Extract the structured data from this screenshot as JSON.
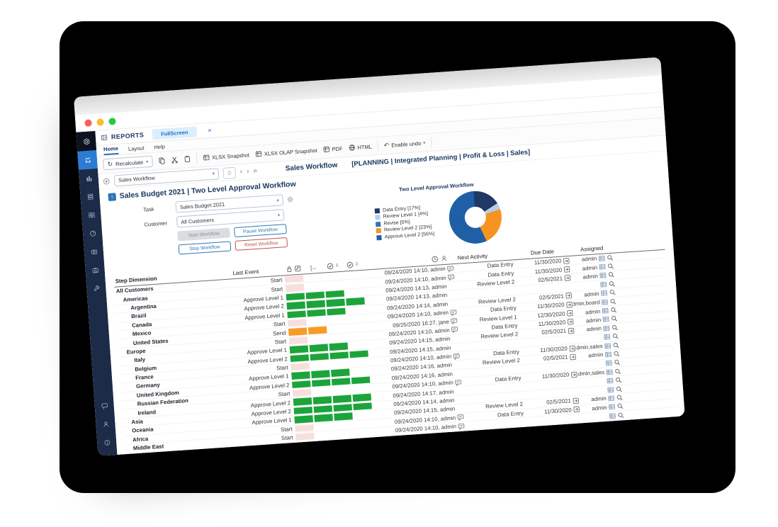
{
  "colors": {
    "accent_blue": "#2e75b6",
    "danger_red": "#c0504d",
    "sidebar_navy": "#1c2b47",
    "sidebar_active_blue": "#2b7cd3",
    "title_navy": "#17365d"
  },
  "sidebar": {
    "top": [
      {
        "name": "board-logo",
        "icon": "hexlogo",
        "active": false,
        "logo": true
      },
      {
        "name": "presentations",
        "icon": "trend",
        "active": true,
        "logo": false
      },
      {
        "name": "reports",
        "icon": "bars",
        "active": false,
        "logo": false
      },
      {
        "name": "database",
        "icon": "db",
        "active": false,
        "logo": false
      },
      {
        "name": "data-view",
        "icon": "cells",
        "active": false,
        "logo": false
      },
      {
        "name": "scheduler",
        "icon": "gauge",
        "active": false,
        "logo": false
      },
      {
        "name": "capture",
        "icon": "camera",
        "active": false,
        "logo": false
      },
      {
        "name": "capsules-home",
        "icon": "homebox",
        "active": false,
        "logo": false
      },
      {
        "name": "system-tools",
        "icon": "wrench",
        "active": false,
        "logo": false
      }
    ],
    "bottom": [
      {
        "name": "comments",
        "icon": "chat"
      },
      {
        "name": "user-account",
        "icon": "person"
      },
      {
        "name": "about-info",
        "icon": "info"
      }
    ]
  },
  "tabbar": {
    "section_label": "REPORTS",
    "tab_label": "FullScreen"
  },
  "menu": {
    "items": [
      "Home",
      "Layout",
      "Help"
    ]
  },
  "toolbar": {
    "recalculate_label": "Recalculate",
    "xlsx_snapshot_label": "XLSX Snapshot",
    "xlsx_olap_label": "XLSX OLAP Snapshot",
    "pdf_label": "PDF",
    "html_label": "HTML",
    "enable_undo_label": "Enable undo"
  },
  "screenbar": {
    "screen_selector_value": "Sales Workflow",
    "title": "Sales Workflow",
    "path": "[PLANNING | Integrated Planning | Profit & Loss | Sales]"
  },
  "workflow_panel": {
    "title": "Sales Budget 2021 | Two Level Approval Workflow",
    "task_label": "Task",
    "task_value": "Sales Budget 2021",
    "customer_label": "Customer",
    "customer_value": "All Customers",
    "buttons": [
      {
        "label": "Start Workflow",
        "variant": "disabled"
      },
      {
        "label": "Pause Workflow",
        "variant": "blue"
      },
      {
        "label": "Stop Workflow",
        "variant": "blue"
      },
      {
        "label": "Reset Workflow",
        "variant": "red"
      }
    ]
  },
  "chart_data": {
    "type": "pie",
    "donut": true,
    "title": "Two Level Approval Workflow",
    "labels": [
      "Data Entry",
      "Review Level 1",
      "Revise",
      "Review Level 2",
      "Approve Level 2"
    ],
    "values": [
      17,
      4,
      0,
      23,
      56
    ],
    "colors": [
      "#1f3864",
      "#b8cce4",
      "#2e75b6",
      "#f79421",
      "#1f5fa6"
    ],
    "legend_labels": [
      "Data Entry [17%]",
      "Review Level 1 [4%]",
      "Revise [0%]",
      "Review Level 2 [23%]",
      "Approve Level 2 [56%]"
    ],
    "legend_position": "left"
  },
  "table": {
    "headers": {
      "step": "Step Dimension",
      "last_event": "Last Event",
      "check1_label": "1.",
      "check2_label": "2.",
      "next_activity": "Next Activity",
      "due_date": "Due Date",
      "assigned": "Assigned"
    },
    "cell_colors": {
      "green": "#1ca43b",
      "pink": "#f6dfdd",
      "orange": "#f79b27"
    },
    "rows": [
      {
        "name": "All Customers",
        "level": 0,
        "event": "Start",
        "state": "start",
        "time": "09/24/2020 14:10, admin",
        "comment": true,
        "next": "Data Entry",
        "due": "11/30/2020",
        "assigned": "admin"
      },
      {
        "name": "Americas",
        "level": 1,
        "event": "Start",
        "state": "start",
        "time": "09/24/2020 14:10, admin",
        "comment": true,
        "next": "Data Entry",
        "due": "11/30/2020",
        "assigned": "admin"
      },
      {
        "name": "Argentina",
        "level": 2,
        "event": "Approve Level 1",
        "state": "approve1",
        "time": "09/24/2020 14:13, admin",
        "comment": false,
        "next": "Review Level 2",
        "due": "02/5/2021",
        "assigned": "admin"
      },
      {
        "name": "Brazil",
        "level": 2,
        "event": "Approve Level 2",
        "state": "approve2",
        "time": "09/24/2020 14:13, admin",
        "comment": false,
        "next": "",
        "due": "",
        "assigned": ""
      },
      {
        "name": "Canada",
        "level": 2,
        "event": "Approve Level 1",
        "state": "approve1",
        "time": "09/24/2020 14:14, admin",
        "comment": false,
        "next": "Review Level 2",
        "due": "02/5/2021",
        "assigned": "admin"
      },
      {
        "name": "Mexico",
        "level": 2,
        "event": "Start",
        "state": "start",
        "time": "09/24/2020 14:10, admin",
        "comment": true,
        "next": "Data Entry",
        "due": "11/30/2020",
        "assigned": "admin,board"
      },
      {
        "name": "United States",
        "level": 2,
        "event": "Send",
        "state": "send",
        "time": "09/25/2020 16:27, jane",
        "comment": true,
        "next": "Review Level 1",
        "due": "12/30/2020",
        "assigned": "admin"
      },
      {
        "name": "Europe",
        "level": 1,
        "event": "Start",
        "state": "start",
        "time": "09/24/2020 14:10, admin",
        "comment": true,
        "next": "Data Entry",
        "due": "11/30/2020",
        "assigned": "admin"
      },
      {
        "name": "Italy",
        "level": 2,
        "event": "Approve Level 1",
        "state": "approve1",
        "time": "09/24/2020 14:15, admin",
        "comment": false,
        "next": "Review Level 2",
        "due": "02/5/2021",
        "assigned": "admin"
      },
      {
        "name": "Belgium",
        "level": 2,
        "event": "Approve Level 2",
        "state": "approve2",
        "time": "09/24/2020 14:15, admin",
        "comment": false,
        "next": "",
        "due": "",
        "assigned": ""
      },
      {
        "name": "France",
        "level": 2,
        "event": "Start",
        "state": "start",
        "time": "09/24/2020 14:10, admin",
        "comment": true,
        "next": "Data Entry",
        "due": "11/30/2020",
        "assigned": "admin,sales"
      },
      {
        "name": "Germany",
        "level": 2,
        "event": "Approve Level 1",
        "state": "approve1",
        "time": "09/24/2020 14:16, admin",
        "comment": false,
        "next": "Review Level 2",
        "due": "02/5/2021",
        "assigned": "admin"
      },
      {
        "name": "United Kingdom",
        "level": 2,
        "event": "Approve Level 2",
        "state": "approve2",
        "time": "09/24/2020 14:16, admin",
        "comment": false,
        "next": "",
        "due": "",
        "assigned": ""
      },
      {
        "name": "Russian Federation",
        "level": 2,
        "event": "Start",
        "state": "start",
        "time": "09/24/2020 14:10, admin",
        "comment": true,
        "next": "Data Entry",
        "due": "11/30/2020",
        "assigned": "admin,sales"
      },
      {
        "name": "Ireland",
        "level": 2,
        "event": "Approve Level 2",
        "state": "approve2",
        "time": "09/24/2020 14:17, admin",
        "comment": false,
        "next": "",
        "due": "",
        "assigned": ""
      },
      {
        "name": "Asia",
        "level": 1,
        "event": "Approve Level 2",
        "state": "approve2",
        "time": "09/24/2020 14:14, admin",
        "comment": false,
        "next": "",
        "due": "",
        "assigned": ""
      },
      {
        "name": "Oceania",
        "level": 1,
        "event": "Approve Level 1",
        "state": "approve1",
        "time": "09/24/2020 14:15, admin",
        "comment": false,
        "next": "Review Level 2",
        "due": "02/5/2021",
        "assigned": "admin"
      },
      {
        "name": "Africa",
        "level": 1,
        "event": "Start",
        "state": "start",
        "time": "09/24/2020 14:10, admin",
        "comment": true,
        "next": "Data Entry",
        "due": "11/30/2020",
        "assigned": "admin"
      },
      {
        "name": "Middle East",
        "level": 1,
        "event": "Start",
        "state": "start",
        "time": "09/24/2020 14:10, admin",
        "comment": true,
        "next": "",
        "due": "",
        "assigned": ""
      }
    ]
  }
}
